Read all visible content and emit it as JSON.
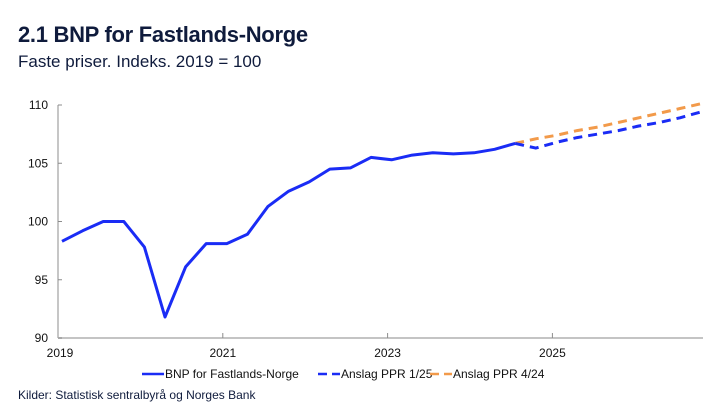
{
  "header": {
    "title": "2.1 BNP for Fastlands-Norge",
    "subtitle": "Faste priser. Indeks. 2019 = 100"
  },
  "footer": {
    "source": "Kilder: Statistisk sentralbyrå og Norges Bank"
  },
  "chart_data": {
    "type": "line",
    "title": "2.1 BNP for Fastlands-Norge",
    "subtitle": "Faste priser. Indeks. 2019 = 100",
    "xlabel": "",
    "ylabel": "",
    "ylim": [
      90,
      110
    ],
    "yticks": [
      90,
      95,
      100,
      105,
      110
    ],
    "xticks": [
      "2019",
      "2021",
      "2023",
      "2025"
    ],
    "x_start": "2019Q1",
    "x_frequency": "quarterly",
    "grid": false,
    "legend_position": "bottom",
    "x": [
      "2019Q1",
      "2019Q2",
      "2019Q3",
      "2019Q4",
      "2020Q1",
      "2020Q2",
      "2020Q3",
      "2020Q4",
      "2021Q1",
      "2021Q2",
      "2021Q3",
      "2021Q4",
      "2022Q1",
      "2022Q2",
      "2022Q3",
      "2022Q4",
      "2023Q1",
      "2023Q2",
      "2023Q3",
      "2023Q4",
      "2024Q1",
      "2024Q2",
      "2024Q3",
      "2024Q4",
      "2025Q1",
      "2025Q2",
      "2025Q3",
      "2025Q4",
      "2026Q1",
      "2026Q2",
      "2026Q3",
      "2026Q4"
    ],
    "series": [
      {
        "name": "BNP for Fastlands-Norge",
        "color": "#1a2cf5",
        "style": "solid",
        "start_index": 0,
        "values": [
          98.3,
          99.2,
          100.0,
          100.0,
          97.8,
          91.8,
          96.1,
          98.1,
          98.1,
          98.9,
          101.3,
          102.6,
          103.4,
          104.5,
          104.6,
          105.5,
          105.3,
          105.7,
          105.9,
          105.8,
          105.9,
          106.2,
          106.7
        ]
      },
      {
        "name": "Anslag PPR 1/25",
        "color": "#1a2cf5",
        "style": "dashed",
        "start_index": 22,
        "values": [
          106.7,
          106.3,
          106.8,
          107.2,
          107.5,
          107.8,
          108.2,
          108.5,
          108.9,
          109.4
        ]
      },
      {
        "name": "Anslag PPR 4/24",
        "color": "#f29a4a",
        "style": "dashed",
        "start_index": 22,
        "values": [
          106.7,
          107.1,
          107.4,
          107.8,
          108.1,
          108.5,
          108.9,
          109.3,
          109.7,
          110.1
        ]
      }
    ]
  }
}
